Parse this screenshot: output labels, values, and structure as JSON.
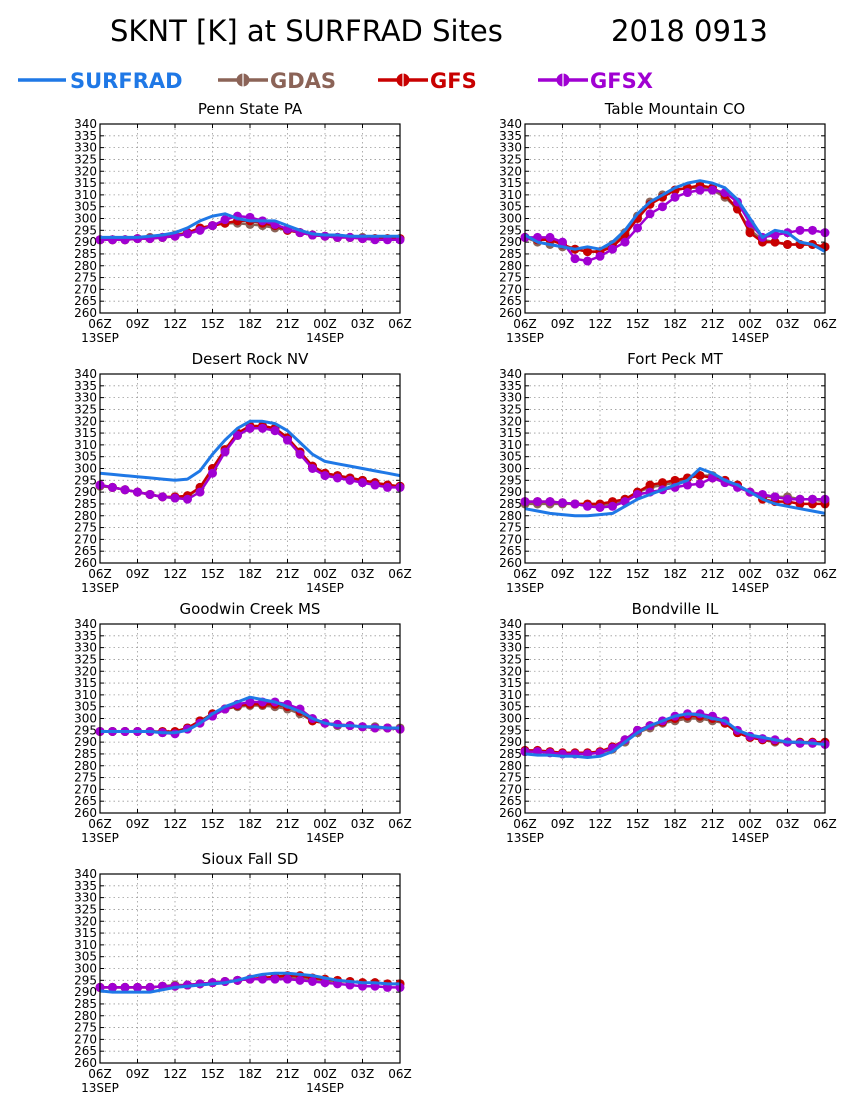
{
  "figure": {
    "title_left": "SKNT [K] at SURFRAD Sites",
    "title_right": "2018 0913"
  },
  "legend": [
    {
      "name": "SURFRAD",
      "color": "#1f78e6",
      "marker": false
    },
    {
      "name": "GDAS",
      "color": "#8b6357",
      "marker": true
    },
    {
      "name": "GFS",
      "color": "#c80000",
      "marker": true
    },
    {
      "name": "GFSX",
      "color": "#a000d2",
      "marker": true
    }
  ],
  "axes_common": {
    "ylim": [
      260,
      340
    ],
    "yticks": [
      260,
      265,
      270,
      275,
      280,
      285,
      290,
      295,
      300,
      305,
      310,
      315,
      320,
      325,
      330,
      335,
      340
    ],
    "xlim": [
      0,
      24
    ],
    "xtick_hours": [
      0,
      3,
      6,
      9,
      12,
      15,
      18,
      21,
      24
    ],
    "xtick_labels": [
      "06Z",
      "09Z",
      "12Z",
      "15Z",
      "18Z",
      "21Z",
      "00Z",
      "03Z",
      "06Z"
    ],
    "date_labels": [
      {
        "hour": 0,
        "text": "13SEP"
      },
      {
        "hour": 18,
        "text": "14SEP"
      }
    ],
    "x_unit": "hours since 06Z 13SEP",
    "grid": true
  },
  "chart_data": [
    {
      "type": "line",
      "title": "Penn State PA",
      "x_hours": [
        0,
        1,
        2,
        3,
        4,
        5,
        6,
        7,
        8,
        9,
        10,
        11,
        12,
        13,
        14,
        15,
        16,
        17,
        18,
        19,
        20,
        21,
        22,
        23,
        24
      ],
      "series": [
        {
          "name": "SURFRAD",
          "values": [
            292,
            292,
            292,
            292,
            292.5,
            293,
            294,
            296,
            299,
            301,
            302,
            300,
            299,
            299,
            299,
            297,
            295,
            293.5,
            293,
            293,
            292.5,
            292.5,
            292.5,
            292.5,
            292.5
          ]
        },
        {
          "name": "GDAS",
          "values": [
            291,
            291,
            291,
            291.5,
            292,
            292,
            293,
            294,
            295.5,
            297,
            298,
            298,
            297.5,
            297,
            296,
            295,
            294,
            293,
            292.5,
            292,
            292,
            292,
            291.5,
            291.5,
            291.5
          ]
        },
        {
          "name": "GFS",
          "values": [
            291,
            291,
            291,
            291.5,
            291.5,
            292,
            292.5,
            294,
            296,
            297,
            298,
            299,
            299,
            298,
            297,
            295,
            294,
            293,
            292.5,
            292,
            292,
            291.5,
            291.5,
            291.5,
            291.5
          ]
        },
        {
          "name": "GFSX",
          "values": [
            291,
            291,
            291,
            291.5,
            291.5,
            292,
            292.5,
            293.5,
            295,
            297,
            299.5,
            301,
            300.5,
            299,
            297.5,
            295.5,
            294,
            293,
            292.5,
            292,
            292,
            291.5,
            291,
            291,
            291
          ]
        }
      ]
    },
    {
      "type": "line",
      "title": "Table Mountain CO",
      "x_hours": [
        0,
        1,
        2,
        3,
        4,
        5,
        6,
        7,
        8,
        9,
        10,
        11,
        12,
        13,
        14,
        15,
        16,
        17,
        18,
        19,
        20,
        21,
        22,
        23,
        24
      ],
      "series": [
        {
          "name": "SURFRAD",
          "values": [
            293,
            290,
            289,
            288,
            287,
            288,
            287,
            290,
            295,
            302,
            307,
            310,
            313,
            315,
            316,
            315,
            313,
            308,
            300,
            292,
            295,
            294,
            290,
            289,
            286
          ]
        },
        {
          "name": "GDAS",
          "values": [
            292,
            290,
            289,
            288,
            287,
            286,
            286,
            289,
            294,
            301,
            307,
            310,
            312,
            313,
            313,
            312,
            309,
            304,
            295,
            291,
            290,
            289,
            289,
            289,
            288
          ]
        },
        {
          "name": "GFS",
          "values": [
            292,
            291,
            291,
            289,
            287,
            286,
            286,
            288,
            293,
            300,
            306,
            309,
            312,
            313,
            314,
            313,
            310,
            304,
            294,
            290,
            290,
            289,
            289,
            289,
            288
          ]
        },
        {
          "name": "GFSX",
          "values": [
            292,
            292,
            292,
            290,
            283,
            282,
            284,
            287,
            290,
            296,
            302,
            305,
            309,
            311,
            312,
            312,
            311,
            307,
            298,
            292,
            293,
            294,
            295,
            295,
            294
          ]
        }
      ]
    },
    {
      "type": "line",
      "title": "Desert Rock NV",
      "x_hours": [
        0,
        1,
        2,
        3,
        4,
        5,
        6,
        7,
        8,
        9,
        10,
        11,
        12,
        13,
        14,
        15,
        16,
        17,
        18,
        19,
        20,
        21,
        22,
        23,
        24
      ],
      "series": [
        {
          "name": "SURFRAD",
          "values": [
            298,
            297.5,
            297,
            296.5,
            296,
            295.5,
            295,
            295.5,
            299,
            306,
            312,
            317,
            320,
            320,
            319,
            316,
            311,
            306,
            303,
            302,
            301,
            300,
            299,
            298,
            297
          ]
        },
        {
          "name": "GDAS",
          "values": [
            292.5,
            292,
            291,
            290,
            289,
            288,
            287.5,
            288,
            292,
            300,
            308,
            314,
            317,
            318,
            317,
            313,
            307,
            301,
            298,
            297,
            296,
            295,
            294,
            293,
            292.5
          ]
        },
        {
          "name": "GFS",
          "values": [
            293,
            292,
            291,
            290,
            289,
            288,
            288,
            288.5,
            292,
            300,
            308,
            315,
            318,
            318,
            317,
            313,
            307,
            301,
            298,
            297,
            296,
            295,
            294,
            293,
            292.5
          ]
        },
        {
          "name": "GFSX",
          "values": [
            293,
            292,
            291,
            290,
            289,
            288,
            287.5,
            287,
            290,
            298,
            307,
            314,
            317,
            317,
            316,
            312,
            306,
            300,
            297,
            296,
            295,
            294,
            293,
            292,
            292
          ]
        }
      ]
    },
    {
      "type": "line",
      "title": "Fort Peck MT",
      "x_hours": [
        0,
        1,
        2,
        3,
        4,
        5,
        6,
        7,
        8,
        9,
        10,
        11,
        12,
        13,
        14,
        15,
        16,
        17,
        18,
        19,
        20,
        21,
        22,
        23,
        24
      ],
      "series": [
        {
          "name": "SURFRAD",
          "values": [
            283,
            282,
            281,
            280.5,
            280,
            280,
            280.5,
            281,
            284,
            287,
            289,
            291,
            293,
            295,
            300,
            298,
            295,
            293,
            290,
            287,
            285,
            284,
            283,
            282,
            281
          ]
        },
        {
          "name": "GDAS",
          "values": [
            285,
            285,
            285,
            285,
            285,
            284.5,
            284.5,
            285,
            287,
            290,
            292,
            293,
            294,
            296,
            297,
            297,
            295,
            293,
            290,
            288,
            288,
            288,
            287,
            287,
            286
          ]
        },
        {
          "name": "GFS",
          "values": [
            286,
            286,
            286,
            285.5,
            285,
            285,
            285,
            286,
            287,
            290,
            293,
            294,
            295,
            296,
            297,
            296,
            295,
            293,
            290,
            287,
            286,
            286,
            285,
            285,
            285
          ]
        },
        {
          "name": "GFSX",
          "values": [
            286,
            286,
            286,
            285.5,
            285,
            284,
            283.5,
            284,
            286,
            289,
            290,
            291,
            292,
            293,
            293.5,
            296,
            294,
            292,
            290,
            289,
            288,
            287,
            287,
            287,
            287
          ]
        }
      ]
    },
    {
      "type": "line",
      "title": "Goodwin Creek MS",
      "x_hours": [
        0,
        1,
        2,
        3,
        4,
        5,
        6,
        7,
        8,
        9,
        10,
        11,
        12,
        13,
        14,
        15,
        16,
        17,
        18,
        19,
        20,
        21,
        22,
        23,
        24
      ],
      "series": [
        {
          "name": "SURFRAD",
          "values": [
            294.5,
            294.5,
            294.5,
            294.5,
            294.5,
            294,
            294,
            295,
            298,
            302,
            305,
            307,
            309,
            308,
            307,
            305,
            303,
            300,
            298,
            297,
            297,
            296.5,
            296.5,
            296,
            296
          ]
        },
        {
          "name": "GDAS",
          "values": [
            294.5,
            294.5,
            294.5,
            294.5,
            294.5,
            294,
            294,
            296,
            299,
            302,
            304,
            305,
            305.5,
            305.5,
            305,
            304,
            302,
            299,
            298,
            297,
            297,
            296.5,
            296.5,
            296,
            296
          ]
        },
        {
          "name": "GFS",
          "values": [
            294.5,
            294.5,
            294.5,
            294.5,
            294.5,
            294.5,
            294.5,
            296,
            299,
            302,
            304,
            305.5,
            306,
            306,
            306,
            305,
            303,
            299,
            298,
            297.5,
            297,
            296.5,
            296,
            296,
            295.5
          ]
        },
        {
          "name": "GFSX",
          "values": [
            294.5,
            294.5,
            294.5,
            294.5,
            294.5,
            294,
            293.5,
            295.5,
            298,
            301,
            304,
            306,
            307,
            307,
            307,
            306,
            304,
            300,
            298,
            297.5,
            297,
            296.5,
            296,
            296,
            295.5
          ]
        }
      ]
    },
    {
      "type": "line",
      "title": "Bondville IL",
      "x_hours": [
        0,
        1,
        2,
        3,
        4,
        5,
        6,
        7,
        8,
        9,
        10,
        11,
        12,
        13,
        14,
        15,
        16,
        17,
        18,
        19,
        20,
        21,
        22,
        23,
        24
      ],
      "series": [
        {
          "name": "SURFRAD",
          "values": [
            285,
            284.5,
            284.5,
            284,
            284,
            283.5,
            284,
            286,
            290,
            294,
            297,
            299,
            301,
            302,
            301.5,
            300,
            299,
            295,
            293,
            292,
            291,
            290,
            290,
            289.5,
            289
          ]
        },
        {
          "name": "GDAS",
          "values": [
            286,
            286,
            285.5,
            285,
            285,
            285,
            285.5,
            287,
            290,
            294,
            296,
            298,
            299,
            300,
            300,
            299,
            298,
            294,
            292,
            291,
            290,
            290,
            289.5,
            289.5,
            289.5
          ]
        },
        {
          "name": "GFS",
          "values": [
            286.5,
            286.5,
            286,
            285.5,
            285.5,
            285.5,
            286,
            288,
            291,
            295,
            297,
            298.5,
            300,
            301,
            301,
            300,
            298,
            294,
            292,
            291,
            290.5,
            290,
            290,
            290,
            290
          ]
        },
        {
          "name": "GFSX",
          "values": [
            286,
            286,
            285.5,
            285,
            285,
            285,
            285.5,
            287.5,
            291,
            295,
            297,
            299,
            301,
            302,
            302,
            301,
            299,
            295,
            292.5,
            291.5,
            291,
            290,
            289.5,
            289.5,
            289
          ]
        }
      ]
    },
    {
      "type": "line",
      "title": "Sioux Fall SD",
      "x_hours": [
        0,
        1,
        2,
        3,
        4,
        5,
        6,
        7,
        8,
        9,
        10,
        11,
        12,
        13,
        14,
        15,
        16,
        17,
        18,
        19,
        20,
        21,
        22,
        23,
        24
      ],
      "series": [
        {
          "name": "SURFRAD",
          "values": [
            290.5,
            290,
            290,
            290,
            290,
            291,
            292,
            292.5,
            293,
            293.5,
            294,
            295,
            296.5,
            297.5,
            298,
            298,
            297.5,
            297,
            296,
            295,
            294.5,
            294,
            294,
            293.5,
            293.5
          ]
        },
        {
          "name": "GDAS",
          "values": [
            292,
            292,
            292,
            292,
            292,
            292.5,
            293,
            293,
            293.5,
            294,
            294.5,
            295,
            295.5,
            296,
            296.5,
            296.5,
            296,
            295.5,
            295,
            294.5,
            294.5,
            294,
            294,
            293.5,
            293.5
          ]
        },
        {
          "name": "GFS",
          "values": [
            292,
            292,
            292,
            292,
            292,
            292.5,
            292.5,
            293,
            293.5,
            294,
            294.5,
            295,
            295.5,
            296,
            296.5,
            297,
            297,
            296,
            295.5,
            295,
            294.5,
            294,
            294,
            293.5,
            293.5
          ]
        },
        {
          "name": "GFSX",
          "values": [
            292,
            292,
            292,
            292,
            292,
            292.5,
            292.5,
            293,
            293.5,
            294,
            294.5,
            295,
            295.5,
            295.5,
            295.5,
            295.5,
            295,
            294.5,
            294,
            293.5,
            293,
            292.5,
            292.5,
            292,
            292
          ]
        }
      ]
    }
  ]
}
